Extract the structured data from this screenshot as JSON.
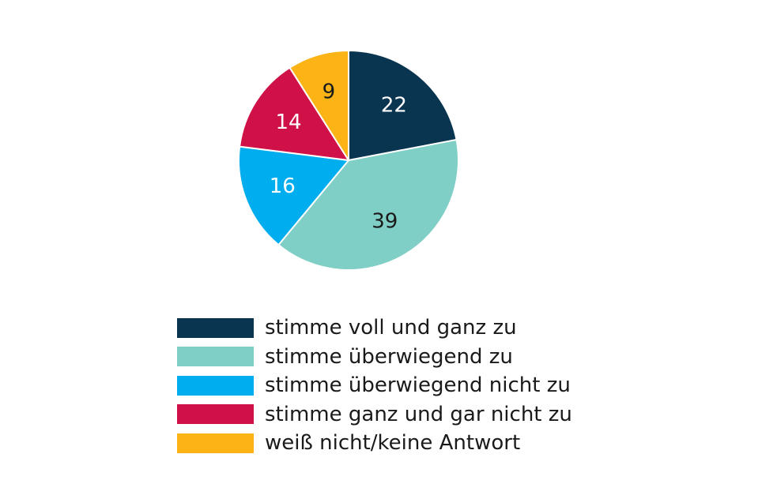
{
  "chart_data": {
    "type": "pie",
    "categories": [
      "stimme voll und ganz zu",
      "stimme überwiegend zu",
      "stimme überwiegend nicht zu",
      "stimme ganz und gar nicht zu",
      "weiß nicht/keine Antwort"
    ],
    "values": [
      22,
      39,
      16,
      14,
      9
    ],
    "data_labels": [
      "22",
      "39",
      "16",
      "14",
      "9"
    ],
    "colors": [
      "#0a3550",
      "#7fcfc6",
      "#00aeef",
      "#cf1148",
      "#fbb316"
    ],
    "label_colors": [
      "#ffffff",
      "#1a1a1a",
      "#ffffff",
      "#ffffff",
      "#1a1a1a"
    ],
    "start": "12 o'clock",
    "direction": "clockwise",
    "legend_position": "bottom",
    "title": "",
    "xlabel": "",
    "ylabel": ""
  }
}
